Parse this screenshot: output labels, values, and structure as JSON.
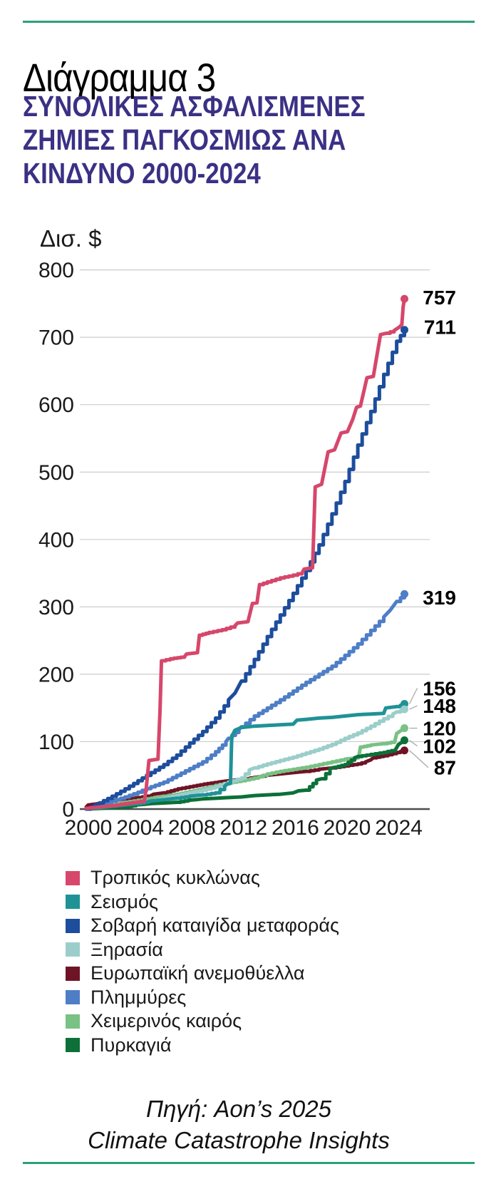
{
  "header": {
    "title": "Διάγραμμα 3",
    "subtitle_lines": [
      "ΣΥΝΟΛΙΚΕΣ ΑΣΦΑΛΙΣΜΕΝΕΣ",
      "ΖΗΜΙΕΣ ΠΑΓΚΟΣΜΙΩΣ ΑΝΑ",
      "ΚΙΝΔΥΝΟ 2000-2024"
    ]
  },
  "colors": {
    "accent_green": "#2aa07c",
    "subtitle_purple": "#3a3185",
    "grid": "#cccccc",
    "axis_line": "#4d4d4d",
    "text": "#1a1a1a",
    "leader": "#aaaaaa"
  },
  "source": {
    "lines": [
      "Πηγή: Aon’s 2025",
      "Climate Catastrophe Insights"
    ]
  },
  "chart_data": {
    "type": "line",
    "title": "ΣΥΝΟΛΙΚΕΣ ΑΣΦΑΛΙΣΜΕΝΕΣ ΖΗΜΙΕΣ ΠΑΓΚΟΣΜΙΩΣ ΑΝΑ ΚΙΝΔΥΝΟ 2000-2024",
    "unit_label": "Δισ. $",
    "xlabel": "",
    "ylabel": "Δισ. $",
    "xlim": [
      1999.6,
      2025.3
    ],
    "ylim": [
      0,
      800
    ],
    "y_ticks": [
      0,
      100,
      200,
      300,
      400,
      500,
      600,
      700,
      800
    ],
    "x_ticks": [
      2000,
      2004,
      2008,
      2012,
      2016,
      2020,
      2024
    ],
    "grid": true,
    "legend_position": "bottom-left",
    "draw_order": [
      4,
      6,
      3,
      7,
      5,
      1,
      2,
      0
    ],
    "series": [
      {
        "name": "Τροπικός κυκλώνας",
        "color": "#d6476b",
        "end_value": 757,
        "end_label": "757",
        "label_offset": -2,
        "leader": false,
        "points": [
          [
            2000,
            1
          ],
          [
            2001,
            3
          ],
          [
            2002,
            5
          ],
          [
            2003,
            8
          ],
          [
            2004.5,
            12
          ],
          [
            2004.65,
            33
          ],
          [
            2004.85,
            72
          ],
          [
            2005.55,
            74
          ],
          [
            2005.7,
            145
          ],
          [
            2005.82,
            220
          ],
          [
            2006.5,
            223
          ],
          [
            2007.6,
            226
          ],
          [
            2007.75,
            230
          ],
          [
            2008.6,
            232
          ],
          [
            2008.75,
            258
          ],
          [
            2009.5,
            262
          ],
          [
            2010.5,
            266
          ],
          [
            2011.5,
            272
          ],
          [
            2011.7,
            276
          ],
          [
            2012.5,
            278
          ],
          [
            2012.85,
            305
          ],
          [
            2013.2,
            306
          ],
          [
            2013.4,
            333
          ],
          [
            2014,
            337
          ],
          [
            2015,
            343
          ],
          [
            2016,
            347
          ],
          [
            2016.7,
            351
          ],
          [
            2016.85,
            356
          ],
          [
            2017.5,
            358
          ],
          [
            2017.7,
            478
          ],
          [
            2018.2,
            482
          ],
          [
            2018.7,
            530
          ],
          [
            2019.2,
            533
          ],
          [
            2019.7,
            558
          ],
          [
            2020.2,
            560
          ],
          [
            2020.6,
            578
          ],
          [
            2020.9,
            596
          ],
          [
            2021.2,
            598
          ],
          [
            2021.7,
            640
          ],
          [
            2022.2,
            642
          ],
          [
            2022.75,
            704
          ],
          [
            2023.2,
            706
          ],
          [
            2023.8,
            710
          ],
          [
            2024.2,
            715
          ],
          [
            2024.4,
            719
          ],
          [
            2024.5,
            745
          ],
          [
            2024.6,
            757
          ]
        ]
      },
      {
        "name": "Σεισμός",
        "color": "#1f9296",
        "end_value": 156,
        "end_label": "156",
        "label_offset": -22,
        "leader": true,
        "points": [
          [
            2000,
            0
          ],
          [
            2001,
            2
          ],
          [
            2002,
            4
          ],
          [
            2003,
            6
          ],
          [
            2004,
            8
          ],
          [
            2004.8,
            11
          ],
          [
            2005,
            12
          ],
          [
            2006,
            14
          ],
          [
            2007,
            16
          ],
          [
            2008,
            19
          ],
          [
            2009,
            21
          ],
          [
            2010,
            24
          ],
          [
            2010.7,
            34
          ],
          [
            2010.9,
            37
          ],
          [
            2011.15,
            38
          ],
          [
            2011.25,
            108
          ],
          [
            2011.5,
            117
          ],
          [
            2012,
            121
          ],
          [
            2013,
            123
          ],
          [
            2014,
            124
          ],
          [
            2015,
            125
          ],
          [
            2016,
            126
          ],
          [
            2016.3,
            132
          ],
          [
            2017,
            133
          ],
          [
            2018,
            135
          ],
          [
            2019,
            136
          ],
          [
            2020,
            138
          ],
          [
            2021,
            140
          ],
          [
            2022,
            141
          ],
          [
            2023,
            142
          ],
          [
            2023.15,
            150
          ],
          [
            2024,
            152
          ],
          [
            2024.6,
            156
          ]
        ]
      },
      {
        "name": "Σοβαρή καταιγίδα μεταφοράς",
        "color": "#1d4d9c",
        "end_value": 711,
        "end_label": "711",
        "label_offset": -4,
        "leader": false,
        "points": [
          [
            2000,
            0
          ],
          [
            2001,
            9
          ],
          [
            2002,
            19
          ],
          [
            2003,
            30
          ],
          [
            2004,
            42
          ],
          [
            2005,
            54
          ],
          [
            2006,
            66
          ],
          [
            2007,
            80
          ],
          [
            2008,
            98
          ],
          [
            2009,
            115
          ],
          [
            2010,
            135
          ],
          [
            2011,
            162
          ],
          [
            2011.5,
            172
          ],
          [
            2012,
            190
          ],
          [
            2013,
            222
          ],
          [
            2014,
            256
          ],
          [
            2015,
            288
          ],
          [
            2016,
            320
          ],
          [
            2017,
            354
          ],
          [
            2018,
            392
          ],
          [
            2019,
            438
          ],
          [
            2020,
            486
          ],
          [
            2021,
            540
          ],
          [
            2022,
            590
          ],
          [
            2023,
            645
          ],
          [
            2024,
            694
          ],
          [
            2024.6,
            711
          ]
        ]
      },
      {
        "name": "Ξηρασία",
        "color": "#9bcecb",
        "end_value": 148,
        "end_label": "148",
        "label_offset": -5,
        "leader": true,
        "points": [
          [
            2000,
            0
          ],
          [
            2001,
            2
          ],
          [
            2002,
            5
          ],
          [
            2003,
            7
          ],
          [
            2004,
            9
          ],
          [
            2005,
            12
          ],
          [
            2006,
            16
          ],
          [
            2007,
            20
          ],
          [
            2008,
            24
          ],
          [
            2009,
            28
          ],
          [
            2010,
            33
          ],
          [
            2011,
            40
          ],
          [
            2012,
            46
          ],
          [
            2012.6,
            58
          ],
          [
            2013,
            61
          ],
          [
            2014,
            67
          ],
          [
            2015,
            72
          ],
          [
            2016,
            77
          ],
          [
            2017,
            83
          ],
          [
            2018,
            89
          ],
          [
            2019,
            96
          ],
          [
            2020,
            105
          ],
          [
            2021,
            113
          ],
          [
            2022,
            123
          ],
          [
            2023,
            134
          ],
          [
            2023.7,
            141
          ],
          [
            2024,
            144
          ],
          [
            2024.6,
            148
          ]
        ]
      },
      {
        "name": "Ευρωπαϊκή ανεμοθύελλα",
        "color": "#6e1426",
        "end_value": 87,
        "end_label": "87",
        "label_offset": 24,
        "leader": true,
        "points": [
          [
            2000,
            3
          ],
          [
            2000.15,
            6
          ],
          [
            2001,
            8
          ],
          [
            2002,
            10
          ],
          [
            2002.2,
            13
          ],
          [
            2003,
            15
          ],
          [
            2004,
            17
          ],
          [
            2005,
            20
          ],
          [
            2005.2,
            22
          ],
          [
            2006,
            24
          ],
          [
            2007.1,
            30
          ],
          [
            2008,
            33
          ],
          [
            2009.1,
            37
          ],
          [
            2010.2,
            40
          ],
          [
            2011,
            42
          ],
          [
            2012,
            44
          ],
          [
            2013,
            47
          ],
          [
            2013.9,
            50
          ],
          [
            2015,
            52
          ],
          [
            2016,
            54
          ],
          [
            2017,
            56
          ],
          [
            2018,
            59
          ],
          [
            2019,
            61
          ],
          [
            2020,
            64
          ],
          [
            2021,
            67
          ],
          [
            2021.6,
            70
          ],
          [
            2022,
            73
          ],
          [
            2022.2,
            76
          ],
          [
            2023,
            79
          ],
          [
            2024,
            84
          ],
          [
            2024.6,
            87
          ]
        ]
      },
      {
        "name": "Πλημμύρες",
        "color": "#4e7ec6",
        "end_value": 319,
        "end_label": "319",
        "label_offset": 5,
        "leader": false,
        "points": [
          [
            2000,
            0
          ],
          [
            2001,
            6
          ],
          [
            2002,
            12
          ],
          [
            2003,
            18
          ],
          [
            2004,
            25
          ],
          [
            2005,
            33
          ],
          [
            2006,
            40
          ],
          [
            2007,
            50
          ],
          [
            2008,
            60
          ],
          [
            2009,
            70
          ],
          [
            2010,
            85
          ],
          [
            2010.8,
            100
          ],
          [
            2011,
            105
          ],
          [
            2011.8,
            118
          ],
          [
            2012,
            122
          ],
          [
            2013,
            138
          ],
          [
            2014,
            150
          ],
          [
            2015,
            162
          ],
          [
            2016,
            175
          ],
          [
            2017,
            188
          ],
          [
            2018,
            200
          ],
          [
            2019,
            212
          ],
          [
            2020,
            228
          ],
          [
            2021,
            245
          ],
          [
            2022,
            265
          ],
          [
            2023,
            285
          ],
          [
            2023.5,
            295
          ],
          [
            2024,
            308
          ],
          [
            2024.6,
            319
          ]
        ]
      },
      {
        "name": "Χειμερινός καιρός",
        "color": "#79c184",
        "end_value": 120,
        "end_label": "120",
        "label_offset": 0,
        "leader": true,
        "points": [
          [
            2000,
            1
          ],
          [
            2001,
            4
          ],
          [
            2002,
            7
          ],
          [
            2003,
            10
          ],
          [
            2004,
            13
          ],
          [
            2005,
            16
          ],
          [
            2006,
            19
          ],
          [
            2007,
            22
          ],
          [
            2008,
            26
          ],
          [
            2009,
            30
          ],
          [
            2010,
            35
          ],
          [
            2011,
            39
          ],
          [
            2012,
            42
          ],
          [
            2013,
            46
          ],
          [
            2014,
            52
          ],
          [
            2015,
            56
          ],
          [
            2016,
            59
          ],
          [
            2017,
            62
          ],
          [
            2018,
            66
          ],
          [
            2019,
            70
          ],
          [
            2020,
            74
          ],
          [
            2021.05,
            76
          ],
          [
            2021.2,
            92
          ],
          [
            2022,
            95
          ],
          [
            2023,
            97
          ],
          [
            2023.85,
            100
          ],
          [
            2024,
            112
          ],
          [
            2024.3,
            116
          ],
          [
            2024.6,
            120
          ]
        ]
      },
      {
        "name": "Πυρκαγιά",
        "color": "#0c7038",
        "end_value": 102,
        "end_label": "102",
        "label_offset": 8,
        "leader": true,
        "points": [
          [
            2000,
            0
          ],
          [
            2001,
            1
          ],
          [
            2002,
            2
          ],
          [
            2003,
            3
          ],
          [
            2003.85,
            6
          ],
          [
            2004.5,
            7
          ],
          [
            2005,
            8
          ],
          [
            2006,
            9
          ],
          [
            2007,
            10
          ],
          [
            2007.9,
            13
          ],
          [
            2008.5,
            14
          ],
          [
            2009,
            15
          ],
          [
            2010,
            16
          ],
          [
            2011,
            17
          ],
          [
            2012,
            18
          ],
          [
            2013,
            20
          ],
          [
            2014,
            21
          ],
          [
            2015,
            22
          ],
          [
            2016,
            24
          ],
          [
            2016.4,
            27
          ],
          [
            2017,
            28
          ],
          [
            2017.8,
            43
          ],
          [
            2018.2,
            45
          ],
          [
            2018.85,
            60
          ],
          [
            2019.2,
            62
          ],
          [
            2020,
            66
          ],
          [
            2020.75,
            76
          ],
          [
            2021,
            78
          ],
          [
            2022,
            81
          ],
          [
            2023,
            84
          ],
          [
            2023.9,
            88
          ],
          [
            2024.15,
            96
          ],
          [
            2024.4,
            99
          ],
          [
            2024.6,
            102
          ]
        ]
      }
    ]
  }
}
